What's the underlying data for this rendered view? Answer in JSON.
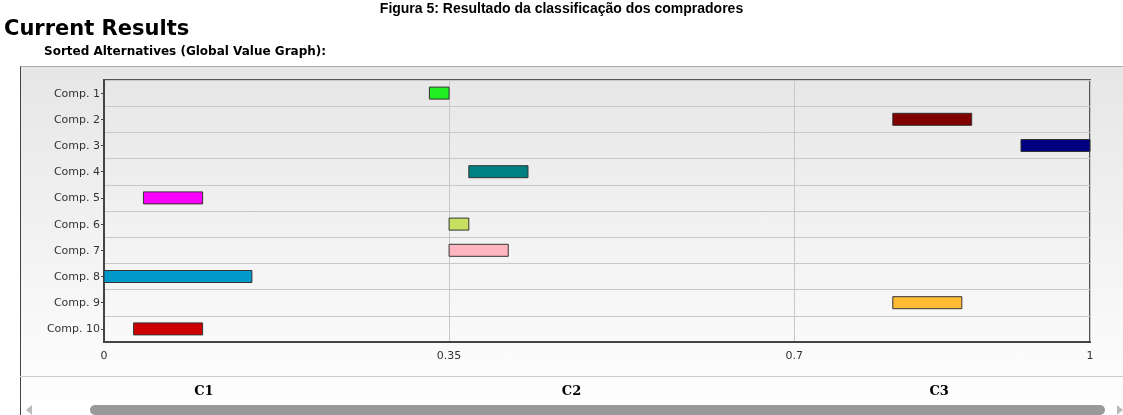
{
  "chart_data": {
    "type": "bar",
    "orientation": "horizontal",
    "title": "Figura 5: Resultado da classificação dos compradores",
    "subtitle": "Current Results",
    "annotations": [
      "Sorted Alternatives (Global Value Graph):",
      "C1",
      "C2",
      "C3"
    ],
    "categories": [
      "Comp. 1",
      "Comp. 2",
      "Comp. 3",
      "Comp. 4",
      "Comp. 5",
      "Comp. 6",
      "Comp. 7",
      "Comp. 8",
      "Comp. 9",
      "Comp. 10"
    ],
    "base": [
      0.33,
      0.8,
      0.93,
      0.37,
      0.04,
      0.35,
      0.35,
      0,
      0.8,
      0.03
    ],
    "values": [
      0.02,
      0.08,
      0.07,
      0.06,
      0.06,
      0.02,
      0.06,
      0.15,
      0.07,
      0.07
    ],
    "colors": [
      "#22ee22",
      "#800000",
      "#000080",
      "#008080",
      "#ff00ff",
      "#c8e060",
      "#ffb6c1",
      "#0099cc",
      "#ffbb33",
      "#cc0000"
    ],
    "xlim": [
      0,
      1
    ],
    "xticks": [
      0,
      0.35,
      0.7,
      1
    ],
    "grid": true
  }
}
